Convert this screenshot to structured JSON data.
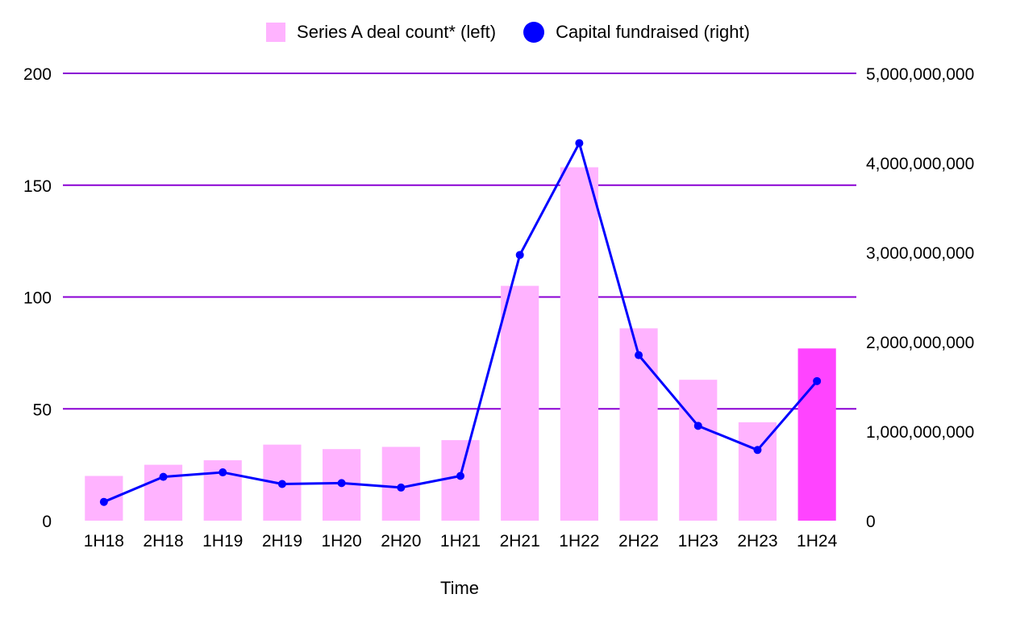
{
  "legend": {
    "bar_label": "Series A deal count* (left)",
    "line_label": "Capital fundraised (right)"
  },
  "chart_data": {
    "type": "bar",
    "title": "",
    "xlabel": "Time",
    "ylabel": "",
    "y2label": "",
    "categories": [
      "1H18",
      "2H18",
      "1H19",
      "2H19",
      "1H20",
      "2H20",
      "1H21",
      "2H21",
      "1H22",
      "2H22",
      "1H23",
      "2H23",
      "1H24"
    ],
    "series": [
      {
        "name": "Series A deal count* (left)",
        "type": "bar",
        "axis": "left",
        "values": [
          20,
          25,
          27,
          34,
          32,
          33,
          36,
          105,
          158,
          86,
          63,
          44,
          77
        ],
        "highlight_index": 12
      },
      {
        "name": "Capital fundraised (right)",
        "type": "line",
        "axis": "right",
        "values": [
          210000000,
          490000000,
          540000000,
          410000000,
          420000000,
          370000000,
          500000000,
          2970000000,
          4220000000,
          1850000000,
          1060000000,
          790000000,
          1560000000
        ]
      }
    ],
    "y_left": {
      "min": 0,
      "max": 200,
      "ticks": [
        0,
        50,
        100,
        150,
        200
      ],
      "tick_labels": [
        "0",
        "50",
        "100",
        "150",
        "200"
      ]
    },
    "y_right": {
      "min": 0,
      "max": 5000000000,
      "ticks": [
        0,
        1000000000,
        2000000000,
        3000000000,
        4000000000,
        5000000000
      ],
      "tick_labels": [
        "0",
        "1,000,000,000",
        "2,000,000,000",
        "3,000,000,000",
        "4,000,000,000",
        "5,000,000,000"
      ]
    },
    "grid": true,
    "legend_position": "top",
    "colors": {
      "bar": "#ffb3ff",
      "bar_highlight": "#ff44ff",
      "line": "#0000ff",
      "grid": "#8a00d4"
    }
  }
}
